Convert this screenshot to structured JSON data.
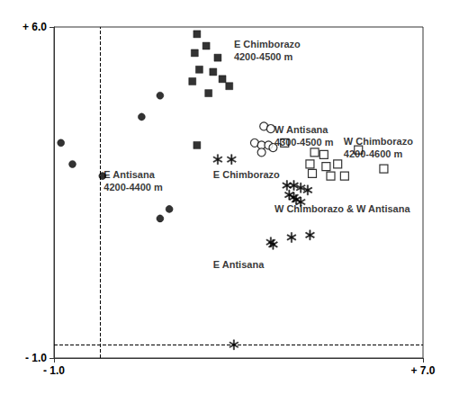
{
  "chart_data": {
    "type": "scatter",
    "xlim": [
      -1.0,
      7.0
    ],
    "ylim": [
      -1.0,
      6.0
    ],
    "xticks": [
      {
        "value": -1.0,
        "label": "- 1.0"
      },
      {
        "value": 7.0,
        "label": "+ 7.0"
      }
    ],
    "yticks": [
      {
        "value": -1.0,
        "label": "- 1.0"
      },
      {
        "value": 6.0,
        "label": "+ 6.0"
      }
    ],
    "grid": false,
    "reference_lines": [
      {
        "axis": "x",
        "value": 0.0,
        "line_style": "dashed",
        "color": "#000000"
      },
      {
        "axis": "y",
        "value": -0.72,
        "line_style": "dashed",
        "color": "#000000"
      }
    ],
    "series": [
      {
        "marker": "square",
        "color": "#000000",
        "values": [
          [
            2.1,
            5.85
          ],
          [
            2.3,
            5.6
          ],
          [
            2.05,
            5.45
          ],
          [
            2.55,
            5.35
          ],
          [
            2.15,
            5.1
          ],
          [
            2.45,
            5.05
          ],
          [
            2.0,
            4.85
          ],
          [
            2.65,
            4.9
          ],
          [
            2.8,
            4.75
          ],
          [
            2.35,
            4.6
          ],
          [
            2.1,
            3.5
          ]
        ]
      },
      {
        "marker": "circle",
        "color": "#000000",
        "values": [
          [
            1.3,
            4.55
          ],
          [
            0.9,
            4.1
          ],
          [
            -0.85,
            3.55
          ],
          [
            -0.6,
            3.1
          ],
          [
            0.05,
            2.85
          ],
          [
            1.5,
            2.15
          ],
          [
            1.3,
            1.95
          ]
        ]
      },
      {
        "marker": "open_square",
        "color": "#000000",
        "values": [
          [
            4.0,
            3.55
          ],
          [
            4.65,
            3.35
          ],
          [
            4.85,
            3.3
          ],
          [
            4.55,
            3.1
          ],
          [
            4.9,
            3.05
          ],
          [
            5.15,
            3.1
          ],
          [
            5.6,
            3.4
          ],
          [
            4.6,
            2.9
          ],
          [
            5.0,
            2.85
          ],
          [
            5.3,
            2.85
          ],
          [
            6.15,
            3.0
          ]
        ]
      },
      {
        "marker": "open_circle",
        "color": "#000000",
        "values": [
          [
            3.55,
            3.9
          ],
          [
            3.7,
            3.85
          ],
          [
            3.35,
            3.55
          ],
          [
            3.5,
            3.5
          ],
          [
            3.65,
            3.5
          ],
          [
            3.75,
            3.45
          ],
          [
            3.5,
            3.35
          ]
        ]
      },
      {
        "marker": "asterisk",
        "color": "#000000",
        "values": [
          [
            2.55,
            3.2
          ],
          [
            2.85,
            3.2
          ],
          [
            4.05,
            2.65
          ],
          [
            4.2,
            2.65
          ],
          [
            4.35,
            2.6
          ],
          [
            4.1,
            2.45
          ],
          [
            4.2,
            2.4
          ],
          [
            4.25,
            2.35
          ],
          [
            4.35,
            2.3
          ],
          [
            4.5,
            2.55
          ],
          [
            4.15,
            1.55
          ],
          [
            4.55,
            1.6
          ],
          [
            3.7,
            1.45
          ],
          [
            3.75,
            1.4
          ],
          [
            2.9,
            -0.72
          ]
        ]
      }
    ],
    "annotations": [
      {
        "text": "E Chimborazo\n4200-4500 m",
        "x": 2.9,
        "y": 5.78
      },
      {
        "text": "W Antisana\n4300-4500 m",
        "x": 3.78,
        "y": 3.96
      },
      {
        "text": "W Chimborazo\n4200-4600 m",
        "x": 5.28,
        "y": 3.72
      },
      {
        "text": "E Antisana\n4200-4400 m",
        "x": 0.08,
        "y": 3.02
      },
      {
        "text": "E Chimborazo",
        "x": 2.45,
        "y": 3.02
      },
      {
        "text": "W Chimborazo & W Antisana",
        "x": 3.78,
        "y": 2.3
      },
      {
        "text": "E Antisana",
        "x": 2.45,
        "y": 1.12
      }
    ]
  }
}
